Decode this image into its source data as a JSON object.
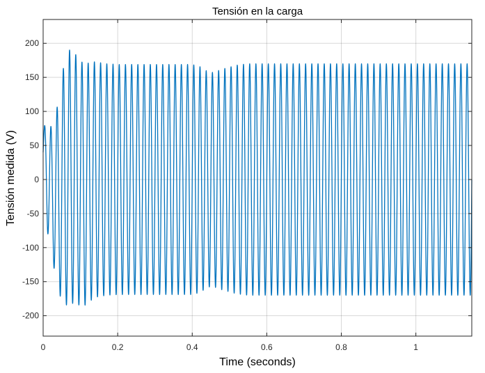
{
  "chart_data": {
    "type": "line",
    "title": "Tensión en la carga",
    "xlabel": "Time (seconds)",
    "ylabel": "Tensión medida  (V)",
    "xlim": [
      0,
      1.15
    ],
    "ylim": [
      -230,
      235
    ],
    "xticks": [
      0,
      0.2,
      0.4,
      0.6,
      0.8,
      1
    ],
    "xtick_labels": [
      "0",
      "0.2",
      "0.4",
      "0.6",
      "0.8",
      "1"
    ],
    "yticks": [
      -200,
      -150,
      -100,
      -50,
      0,
      50,
      100,
      150,
      200
    ],
    "ytick_labels": [
      "-200",
      "-150",
      "-100",
      "-50",
      "0",
      "50",
      "100",
      "150",
      "200"
    ],
    "grid": true,
    "line_color": "#0072BD",
    "series": [
      {
        "frequency_hz": 60,
        "envelope": {
          "t": [
            0,
            0.012,
            0.025,
            0.04,
            0.055,
            0.072,
            0.09,
            0.105,
            0.12,
            0.14,
            0.17,
            0.2,
            0.4,
            0.42,
            0.44,
            0.45,
            0.46,
            0.48,
            0.5,
            0.52,
            0.55,
            1.15
          ],
          "amplitude": [
            40,
            78,
            98,
            137,
            176,
            187,
            182,
            180,
            176,
            173,
            170,
            169,
            169,
            166,
            159,
            157,
            158,
            162,
            165,
            168,
            170,
            170
          ],
          "offset": [
            40,
            0,
            -20,
            -25,
            -10,
            5,
            0,
            -8,
            -5,
            0,
            0,
            0,
            0,
            0,
            0,
            0,
            0,
            0,
            0,
            0,
            0,
            0
          ]
        }
      }
    ]
  }
}
